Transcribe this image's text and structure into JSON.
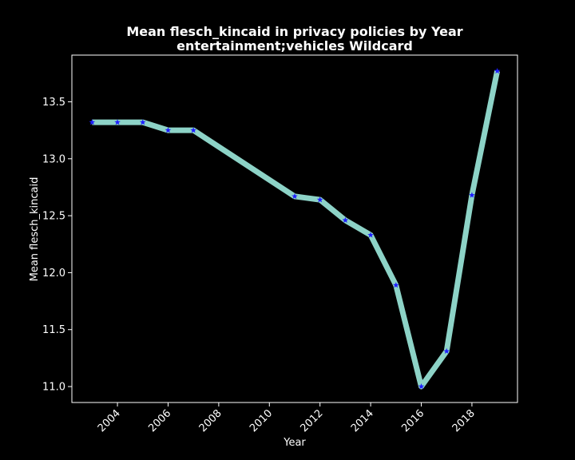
{
  "chart_data": {
    "type": "line",
    "title": "Mean flesch_kincaid in privacy policies by Year",
    "subtitle": "entertainment;vehicles Wildcard",
    "xlabel": "Year",
    "ylabel": "Mean flesch_kincaid",
    "xlim": [
      2002.2,
      2019.8
    ],
    "ylim": [
      10.86,
      13.91
    ],
    "xticks": [
      "2004",
      "2006",
      "2008",
      "2010",
      "2012",
      "2014",
      "2016",
      "2018"
    ],
    "yticks": [
      "11.0",
      "11.5",
      "12.0",
      "12.5",
      "13.0",
      "13.5"
    ],
    "grid": false,
    "series": [
      {
        "x": [
          2003,
          2004,
          2005,
          2006,
          2007,
          2011,
          2012,
          2013,
          2014,
          2015,
          2016,
          2017,
          2018,
          2019
        ],
        "y": [
          13.32,
          13.32,
          13.32,
          13.25,
          13.25,
          12.67,
          12.64,
          12.46,
          12.33,
          11.89,
          11.0,
          11.31,
          12.68,
          13.77
        ],
        "line_color": "#8dd3c7",
        "marker_color": "#1f1fff",
        "marker": "star"
      }
    ]
  }
}
